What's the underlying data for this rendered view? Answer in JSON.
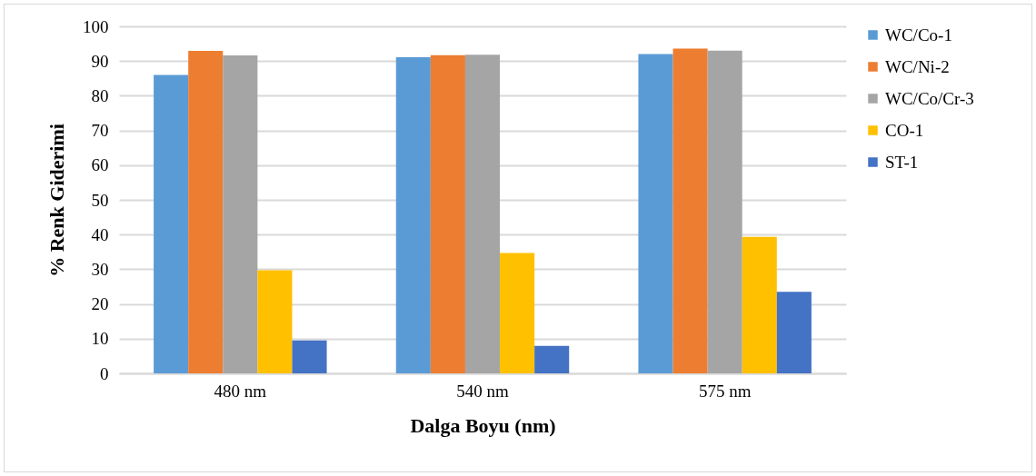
{
  "chart_data": {
    "type": "bar",
    "xlabel": "Dalga Boyu (nm)",
    "ylabel": "% Renk Giderimi",
    "categories": [
      "480 nm",
      "540 nm",
      "575 nm"
    ],
    "series": [
      {
        "name": "WC/Co-1",
        "color": "#5b9bd5",
        "values": [
          86,
          91.1,
          92
        ]
      },
      {
        "name": "WC/Ni-2",
        "color": "#ed7d31",
        "values": [
          92.9,
          91.7,
          93.6
        ]
      },
      {
        "name": "WC/Co/Cr-3",
        "color": "#a5a5a5",
        "values": [
          91.6,
          91.8,
          93
        ]
      },
      {
        "name": "CO-1",
        "color": "#ffc000",
        "values": [
          29.7,
          34.7,
          39.3
        ]
      },
      {
        "name": "ST-1",
        "color": "#4472c4",
        "values": [
          9.5,
          7.9,
          23.5
        ]
      }
    ],
    "ylim": [
      0,
      100
    ],
    "yticks": [
      0,
      10,
      20,
      30,
      40,
      50,
      60,
      70,
      80,
      90,
      100
    ],
    "grid": "y",
    "legend": "right"
  }
}
